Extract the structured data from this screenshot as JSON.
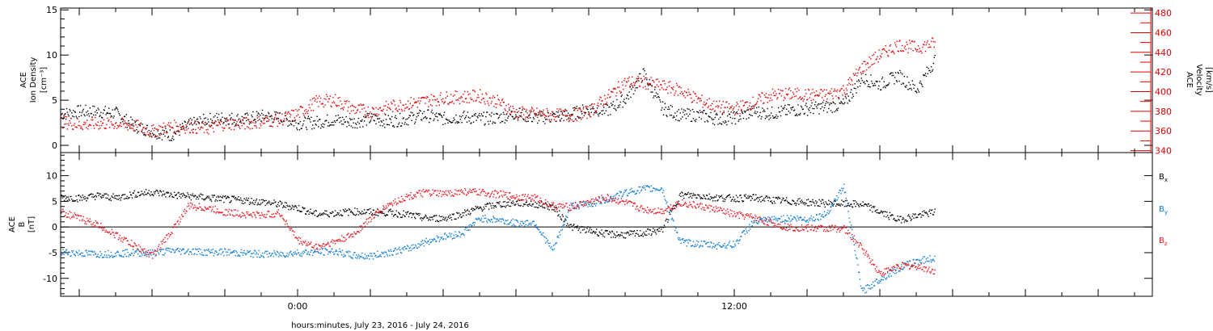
{
  "chart_data": {
    "type": "scatter",
    "xlabel": "hours:minutes, July 23, 2016 - July 24, 2016",
    "x_tick_labels": [
      "0:00",
      "12:00"
    ],
    "panels": [
      {
        "id": "ion-density-velocity",
        "ylabel_lines": [
          "ACE",
          "Ion Density",
          "[cm⁻³]"
        ],
        "ylim": [
          -0.8,
          15.2
        ],
        "y_ticks": [
          0,
          5,
          10,
          15
        ],
        "right_axis": {
          "label_lines": [
            "ACE",
            "Velocity",
            "[km/s]"
          ],
          "ylim": [
            338,
            485
          ],
          "ticks": [
            340,
            360,
            380,
            400,
            420,
            440,
            460,
            480
          ],
          "color": "#e00000"
        },
        "series": [
          {
            "key": "density",
            "color": "#000000",
            "axis": "left",
            "x": [
              -6.5,
              -6.0,
              -5.5,
              -5.0,
              -4.5,
              -4.0,
              -3.5,
              -3.0,
              -2.5,
              -2.0,
              -1.5,
              -1.0,
              -0.5,
              0.0,
              0.5,
              1.0,
              1.5,
              2.0,
              2.5,
              3.0,
              3.5,
              4.0,
              4.5,
              5.0,
              5.5,
              6.0,
              6.5,
              7.0,
              7.5,
              8.0,
              8.5,
              9.0,
              9.5,
              10.0,
              10.5,
              11.0,
              11.5,
              12.0,
              12.5,
              13.0,
              13.5,
              14.0,
              14.5,
              15.0,
              15.5,
              16.0,
              16.5,
              17.0,
              17.5
            ],
            "values": [
              3.5,
              3.8,
              3.8,
              3.6,
              2.2,
              1.6,
              1.2,
              2.3,
              2.9,
              3.1,
              2.9,
              3.3,
              3.1,
              2.5,
              2.6,
              2.9,
              2.6,
              3.0,
              2.7,
              3.0,
              3.4,
              3.0,
              3.2,
              3.0,
              3.1,
              3.6,
              3.1,
              3.2,
              3.5,
              4.1,
              3.9,
              5.2,
              8.0,
              4.2,
              3.4,
              3.4,
              3.0,
              3.1,
              3.8,
              3.6,
              3.9,
              4.1,
              4.3,
              4.6,
              7.5,
              6.8,
              7.8,
              6.2,
              9.5
            ]
          },
          {
            "key": "velocity",
            "color": "#e00000",
            "axis": "right",
            "x": [
              -6.5,
              -6.0,
              -5.5,
              -5.0,
              -4.5,
              -4.0,
              -3.5,
              -3.0,
              -2.5,
              -2.0,
              -1.5,
              -1.0,
              -0.5,
              0.0,
              0.5,
              1.0,
              1.5,
              2.0,
              2.5,
              3.0,
              3.5,
              4.0,
              4.5,
              5.0,
              5.5,
              6.0,
              6.5,
              7.0,
              7.5,
              8.0,
              8.5,
              9.0,
              9.5,
              10.0,
              10.5,
              11.0,
              11.5,
              12.0,
              12.5,
              13.0,
              13.5,
              14.0,
              14.5,
              15.0,
              15.5,
              16.0,
              16.5,
              17.0,
              17.5
            ],
            "values": [
              370,
              367,
              368,
              368,
              366,
              360,
              365,
              365,
              363,
              368,
              368,
              370,
              372,
              378,
              390,
              392,
              383,
              380,
              385,
              388,
              391,
              394,
              395,
              396,
              390,
              379,
              378,
              377,
              376,
              380,
              395,
              410,
              410,
              406,
              402,
              392,
              385,
              383,
              389,
              397,
              398,
              397,
              397,
              402,
              425,
              438,
              448,
              445,
              450
            ]
          }
        ]
      },
      {
        "id": "magnetic-field",
        "ylabel_lines": [
          "ACE",
          "B",
          "[nT]"
        ],
        "ylim": [
          -13.5,
          14.5
        ],
        "y_ticks": [
          -10,
          -5,
          0,
          5,
          10
        ],
        "zero_line": true,
        "series": [
          {
            "key": "Bx",
            "name": "Bx",
            "color": "#000000",
            "x": [
              -6.5,
              -6.0,
              -5.5,
              -5.0,
              -4.5,
              -4.0,
              -3.5,
              -3.0,
              -2.5,
              -2.0,
              -1.5,
              -1.0,
              -0.5,
              0.0,
              0.5,
              1.0,
              1.5,
              2.0,
              2.5,
              3.0,
              3.5,
              4.0,
              4.5,
              5.0,
              5.5,
              6.0,
              6.5,
              7.0,
              7.5,
              8.0,
              8.5,
              9.0,
              9.5,
              10.0,
              10.5,
              11.0,
              11.5,
              12.0,
              12.5,
              13.0,
              13.5,
              14.0,
              14.5,
              15.0,
              15.5,
              16.0,
              16.5,
              17.0,
              17.5
            ],
            "values": [
              5.9,
              5.7,
              6.2,
              5.8,
              6.5,
              6.9,
              6.4,
              6.1,
              5.8,
              5.5,
              5.3,
              5.0,
              4.5,
              3.8,
              2.6,
              2.8,
              3.1,
              3.0,
              2.9,
              2.5,
              1.8,
              1.8,
              2.6,
              3.8,
              4.5,
              4.8,
              4.6,
              4.0,
              0.1,
              -0.6,
              -1.3,
              -1.4,
              -1.1,
              -0.5,
              6.3,
              6.2,
              5.8,
              5.7,
              5.8,
              5.4,
              5.1,
              4.9,
              4.7,
              4.6,
              4.5,
              3.0,
              1.5,
              2.3,
              3.0
            ]
          },
          {
            "key": "By",
            "name": "By",
            "color": "#0a7ad6",
            "x": [
              -6.5,
              -6.0,
              -5.5,
              -5.0,
              -4.5,
              -4.0,
              -3.5,
              -3.0,
              -2.5,
              -2.0,
              -1.5,
              -1.0,
              -0.5,
              0.0,
              0.5,
              1.0,
              1.5,
              2.0,
              2.5,
              3.0,
              3.5,
              4.0,
              4.5,
              5.0,
              5.5,
              6.0,
              6.5,
              7.0,
              7.5,
              8.0,
              8.5,
              9.0,
              9.5,
              10.0,
              10.5,
              11.0,
              11.5,
              12.0,
              12.5,
              13.0,
              13.5,
              14.0,
              14.5,
              15.0,
              15.5,
              16.0,
              16.5,
              17.0,
              17.5
            ],
            "values": [
              -4.8,
              -5.0,
              -5.2,
              -5.1,
              -4.9,
              -5.0,
              -4.5,
              -4.6,
              -4.8,
              -4.8,
              -5.0,
              -5.2,
              -5.2,
              -4.9,
              -4.8,
              -4.6,
              -5.5,
              -5.6,
              -4.8,
              -4.2,
              -2.8,
              -1.8,
              -1.2,
              1.8,
              1.5,
              0.8,
              1.0,
              -4.5,
              4.2,
              4.5,
              5.5,
              6.8,
              7.5,
              7.6,
              -2.8,
              -3.2,
              -3.5,
              -3.3,
              1.0,
              1.5,
              1.8,
              1.6,
              2.5,
              8.0,
              -12.5,
              -10.0,
              -8.0,
              -6.5,
              -6.0
            ]
          },
          {
            "key": "Bz",
            "name": "Bz",
            "color": "#e8141e",
            "x": [
              -6.5,
              -6.0,
              -5.5,
              -5.0,
              -4.5,
              -4.0,
              -3.5,
              -3.0,
              -2.5,
              -2.0,
              -1.5,
              -1.0,
              -0.5,
              0.0,
              0.5,
              1.0,
              1.5,
              2.0,
              2.5,
              3.0,
              3.5,
              4.0,
              4.5,
              5.0,
              5.5,
              6.0,
              6.5,
              7.0,
              7.5,
              8.0,
              8.5,
              9.0,
              9.5,
              10.0,
              10.5,
              11.0,
              11.5,
              12.0,
              12.5,
              13.0,
              13.5,
              14.0,
              14.5,
              15.0,
              15.5,
              16.0,
              16.5,
              17.0,
              17.5
            ],
            "values": [
              3.0,
              1.8,
              0.5,
              -1.5,
              -3.5,
              -5.5,
              -1.0,
              4.2,
              3.8,
              3.0,
              2.6,
              2.4,
              2.8,
              -2.5,
              -3.8,
              -2.8,
              -1.5,
              1.8,
              4.5,
              6.0,
              6.8,
              6.5,
              7.0,
              6.8,
              6.5,
              6.0,
              5.8,
              4.2,
              4.0,
              5.0,
              5.8,
              4.8,
              3.5,
              3.2,
              4.8,
              4.2,
              3.5,
              2.5,
              2.0,
              0.8,
              0.0,
              -0.1,
              -0.2,
              -0.2,
              -4.0,
              -9.0,
              -7.5,
              -7.5,
              -8.5
            ]
          }
        ]
      }
    ]
  }
}
